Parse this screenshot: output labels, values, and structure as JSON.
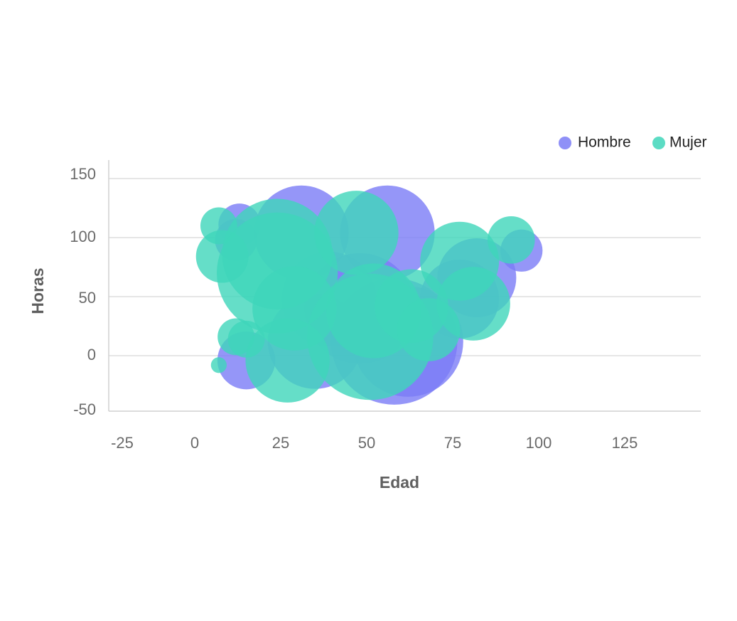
{
  "chart_data": {
    "type": "bubble",
    "xlabel": "Edad",
    "ylabel": "Horas",
    "xlim": [
      -25,
      125
    ],
    "ylim": [
      -50,
      150
    ],
    "xticks": [
      "-25",
      "0",
      "25",
      "50",
      "75",
      "100",
      "125"
    ],
    "yticks": [
      "150",
      "100",
      "50",
      "0",
      "-50"
    ],
    "grid": "horizontal",
    "legend_position": "top-right",
    "series": [
      {
        "name": "Hombre",
        "color": "#7b7cf6",
        "points": [
          {
            "x": 13,
            "y": 111,
            "r": 8
          },
          {
            "x": 12,
            "y": 98,
            "r": 8
          },
          {
            "x": 31,
            "y": 104,
            "r": 18
          },
          {
            "x": 56,
            "y": 104,
            "r": 18
          },
          {
            "x": 39,
            "y": 48,
            "r": 18
          },
          {
            "x": 48,
            "y": 40,
            "r": 21
          },
          {
            "x": 35,
            "y": 12,
            "r": 18
          },
          {
            "x": 15,
            "y": -4,
            "r": 11
          },
          {
            "x": 58,
            "y": 12,
            "r": 24
          },
          {
            "x": 62,
            "y": 12,
            "r": 21
          },
          {
            "x": 77,
            "y": 48,
            "r": 15
          },
          {
            "x": 82,
            "y": 66,
            "r": 15
          },
          {
            "x": 95,
            "y": 89,
            "r": 8
          }
        ]
      },
      {
        "name": "Mujer",
        "color": "#3fd6ba",
        "points": [
          {
            "x": 7,
            "y": 110,
            "r": 7
          },
          {
            "x": 8,
            "y": 84,
            "r": 10
          },
          {
            "x": 24,
            "y": 86,
            "r": 21
          },
          {
            "x": 24,
            "y": 70,
            "r": 23
          },
          {
            "x": 29,
            "y": 40,
            "r": 16
          },
          {
            "x": 47,
            "y": 104,
            "r": 16
          },
          {
            "x": 52,
            "y": 38,
            "r": 18
          },
          {
            "x": 51,
            "y": 16,
            "r": 24
          },
          {
            "x": 63,
            "y": 42,
            "r": 14
          },
          {
            "x": 68,
            "y": 22,
            "r": 12
          },
          {
            "x": 77,
            "y": 80,
            "r": 15
          },
          {
            "x": 81,
            "y": 44,
            "r": 14
          },
          {
            "x": 92,
            "y": 98,
            "r": 9
          },
          {
            "x": 12,
            "y": 16,
            "r": 7
          },
          {
            "x": 15,
            "y": 14,
            "r": 7
          },
          {
            "x": 27,
            "y": -4,
            "r": 16
          },
          {
            "x": 7,
            "y": -8,
            "r": 3
          }
        ]
      }
    ]
  }
}
